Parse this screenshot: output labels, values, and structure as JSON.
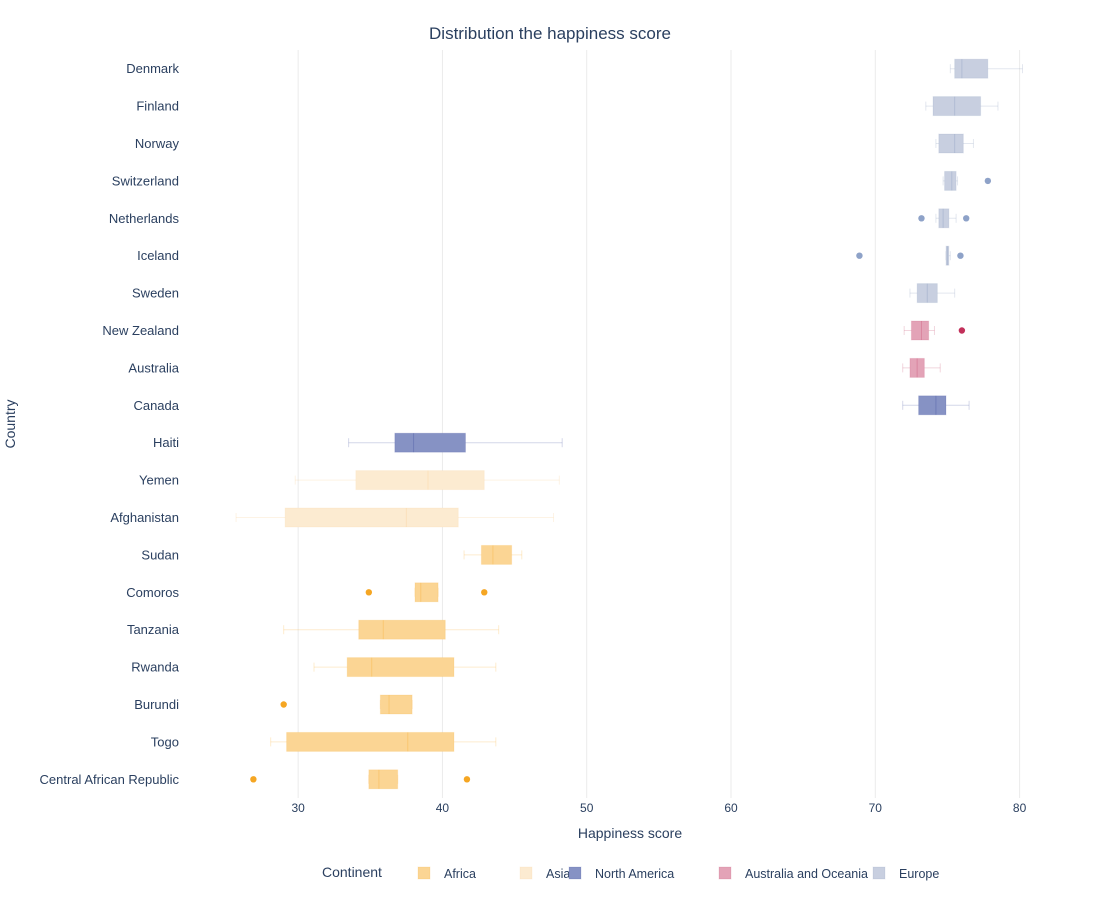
{
  "chart_data": {
    "type": "box",
    "orientation": "horizontal",
    "title": "Distribution the happiness score",
    "xlabel": "Happiness score",
    "ylabel": "Country",
    "xlim": [
      23.2,
      82.8
    ],
    "xticks": [
      30,
      40,
      50,
      60,
      70,
      80
    ],
    "grid": true,
    "legend": {
      "title": "Continent",
      "placement": "bottom-center",
      "entries": [
        "Africa",
        "Asia",
        "North America",
        "Australia and Oceania",
        "Europe"
      ]
    },
    "colors": {
      "Africa": "#f9a825",
      "Asia": "#f7c98a",
      "North America": "#3a4a9a",
      "Australia and Oceania": "#c2466a",
      "Europe": "#7f92b8"
    },
    "box_colors": {
      "Africa": "#fbd594",
      "Asia": "#fcebd1",
      "North America": "#8692c4",
      "Australia and Oceania": "#e3a3b7",
      "Europe": "#c8cfe0"
    },
    "outlier_colors": {
      "Africa": "#f5a623",
      "Asia": "#f5a623",
      "North America": "#3a4a9a",
      "Australia and Oceania": "#c2305a",
      "Europe": "#8ea2c8"
    },
    "categories": [
      "Denmark",
      "Finland",
      "Norway",
      "Switzerland",
      "Netherlands",
      "Iceland",
      "Sweden",
      "New Zealand",
      "Australia",
      "Canada",
      "Haiti",
      "Yemen",
      "Afghanistan",
      "Sudan",
      "Comoros",
      "Tanzania",
      "Rwanda",
      "Burundi",
      "Togo",
      "Central African Republic"
    ],
    "series": [
      {
        "country": "Denmark",
        "continent": "Europe",
        "min": 75.2,
        "q1": 75.5,
        "median": 76.0,
        "q3": 77.8,
        "max": 80.2,
        "outliers": []
      },
      {
        "country": "Finland",
        "continent": "Europe",
        "min": 73.5,
        "q1": 74.0,
        "median": 75.5,
        "q3": 77.3,
        "max": 78.5,
        "outliers": []
      },
      {
        "country": "Norway",
        "continent": "Europe",
        "min": 74.2,
        "q1": 74.4,
        "median": 75.5,
        "q3": 76.1,
        "max": 76.8,
        "outliers": []
      },
      {
        "country": "Switzerland",
        "continent": "Europe",
        "min": 74.7,
        "q1": 74.8,
        "median": 75.3,
        "q3": 75.6,
        "max": 75.7,
        "outliers": [
          77.8
        ]
      },
      {
        "country": "Netherlands",
        "continent": "Europe",
        "min": 74.2,
        "q1": 74.4,
        "median": 74.7,
        "q3": 75.1,
        "max": 75.6,
        "outliers": [
          73.2,
          76.3
        ]
      },
      {
        "country": "Iceland",
        "continent": "Europe",
        "min": 74.9,
        "q1": 74.9,
        "median": 75.0,
        "q3": 75.1,
        "max": 75.2,
        "outliers": [
          68.9,
          75.9
        ]
      },
      {
        "country": "Sweden",
        "continent": "Europe",
        "min": 72.4,
        "q1": 72.9,
        "median": 73.6,
        "q3": 74.3,
        "max": 75.5,
        "outliers": []
      },
      {
        "country": "New Zealand",
        "continent": "Australia and Oceania",
        "min": 72.0,
        "q1": 72.5,
        "median": 73.2,
        "q3": 73.7,
        "max": 74.1,
        "outliers": [
          76.0
        ]
      },
      {
        "country": "Australia",
        "continent": "Australia and Oceania",
        "min": 71.9,
        "q1": 72.4,
        "median": 72.9,
        "q3": 73.4,
        "max": 74.5,
        "outliers": []
      },
      {
        "country": "Canada",
        "continent": "North America",
        "min": 71.9,
        "q1": 73.0,
        "median": 74.2,
        "q3": 74.9,
        "max": 76.5,
        "outliers": []
      },
      {
        "country": "Haiti",
        "continent": "North America",
        "min": 33.5,
        "q1": 36.7,
        "median": 38.0,
        "q3": 41.6,
        "max": 48.3,
        "outliers": []
      },
      {
        "country": "Yemen",
        "continent": "Asia",
        "min": 29.8,
        "q1": 34.0,
        "median": 39.0,
        "q3": 42.9,
        "max": 48.1,
        "outliers": []
      },
      {
        "country": "Afghanistan",
        "continent": "Asia",
        "min": 25.7,
        "q1": 29.1,
        "median": 37.5,
        "q3": 41.1,
        "max": 47.7,
        "outliers": []
      },
      {
        "country": "Sudan",
        "continent": "Africa",
        "min": 41.5,
        "q1": 42.7,
        "median": 43.5,
        "q3": 44.8,
        "max": 45.5,
        "outliers": []
      },
      {
        "country": "Comoros",
        "continent": "Africa",
        "min": 38.1,
        "q1": 38.1,
        "median": 38.5,
        "q3": 39.7,
        "max": 39.7,
        "outliers": [
          34.9,
          42.9
        ]
      },
      {
        "country": "Tanzania",
        "continent": "Africa",
        "min": 29.0,
        "q1": 34.2,
        "median": 35.9,
        "q3": 40.2,
        "max": 43.9,
        "outliers": []
      },
      {
        "country": "Rwanda",
        "continent": "Africa",
        "min": 31.1,
        "q1": 33.4,
        "median": 35.1,
        "q3": 40.8,
        "max": 43.7,
        "outliers": []
      },
      {
        "country": "Burundi",
        "continent": "Africa",
        "min": 35.7,
        "q1": 35.7,
        "median": 36.3,
        "q3": 37.9,
        "max": 37.9,
        "outliers": [
          29.0
        ]
      },
      {
        "country": "Togo",
        "continent": "Africa",
        "min": 28.1,
        "q1": 29.2,
        "median": 37.6,
        "q3": 40.8,
        "max": 43.7,
        "outliers": []
      },
      {
        "country": "Central African Republic",
        "continent": "Africa",
        "min": 34.9,
        "q1": 34.9,
        "median": 35.6,
        "q3": 36.9,
        "max": 36.9,
        "outliers": [
          26.9,
          41.7
        ]
      }
    ]
  }
}
